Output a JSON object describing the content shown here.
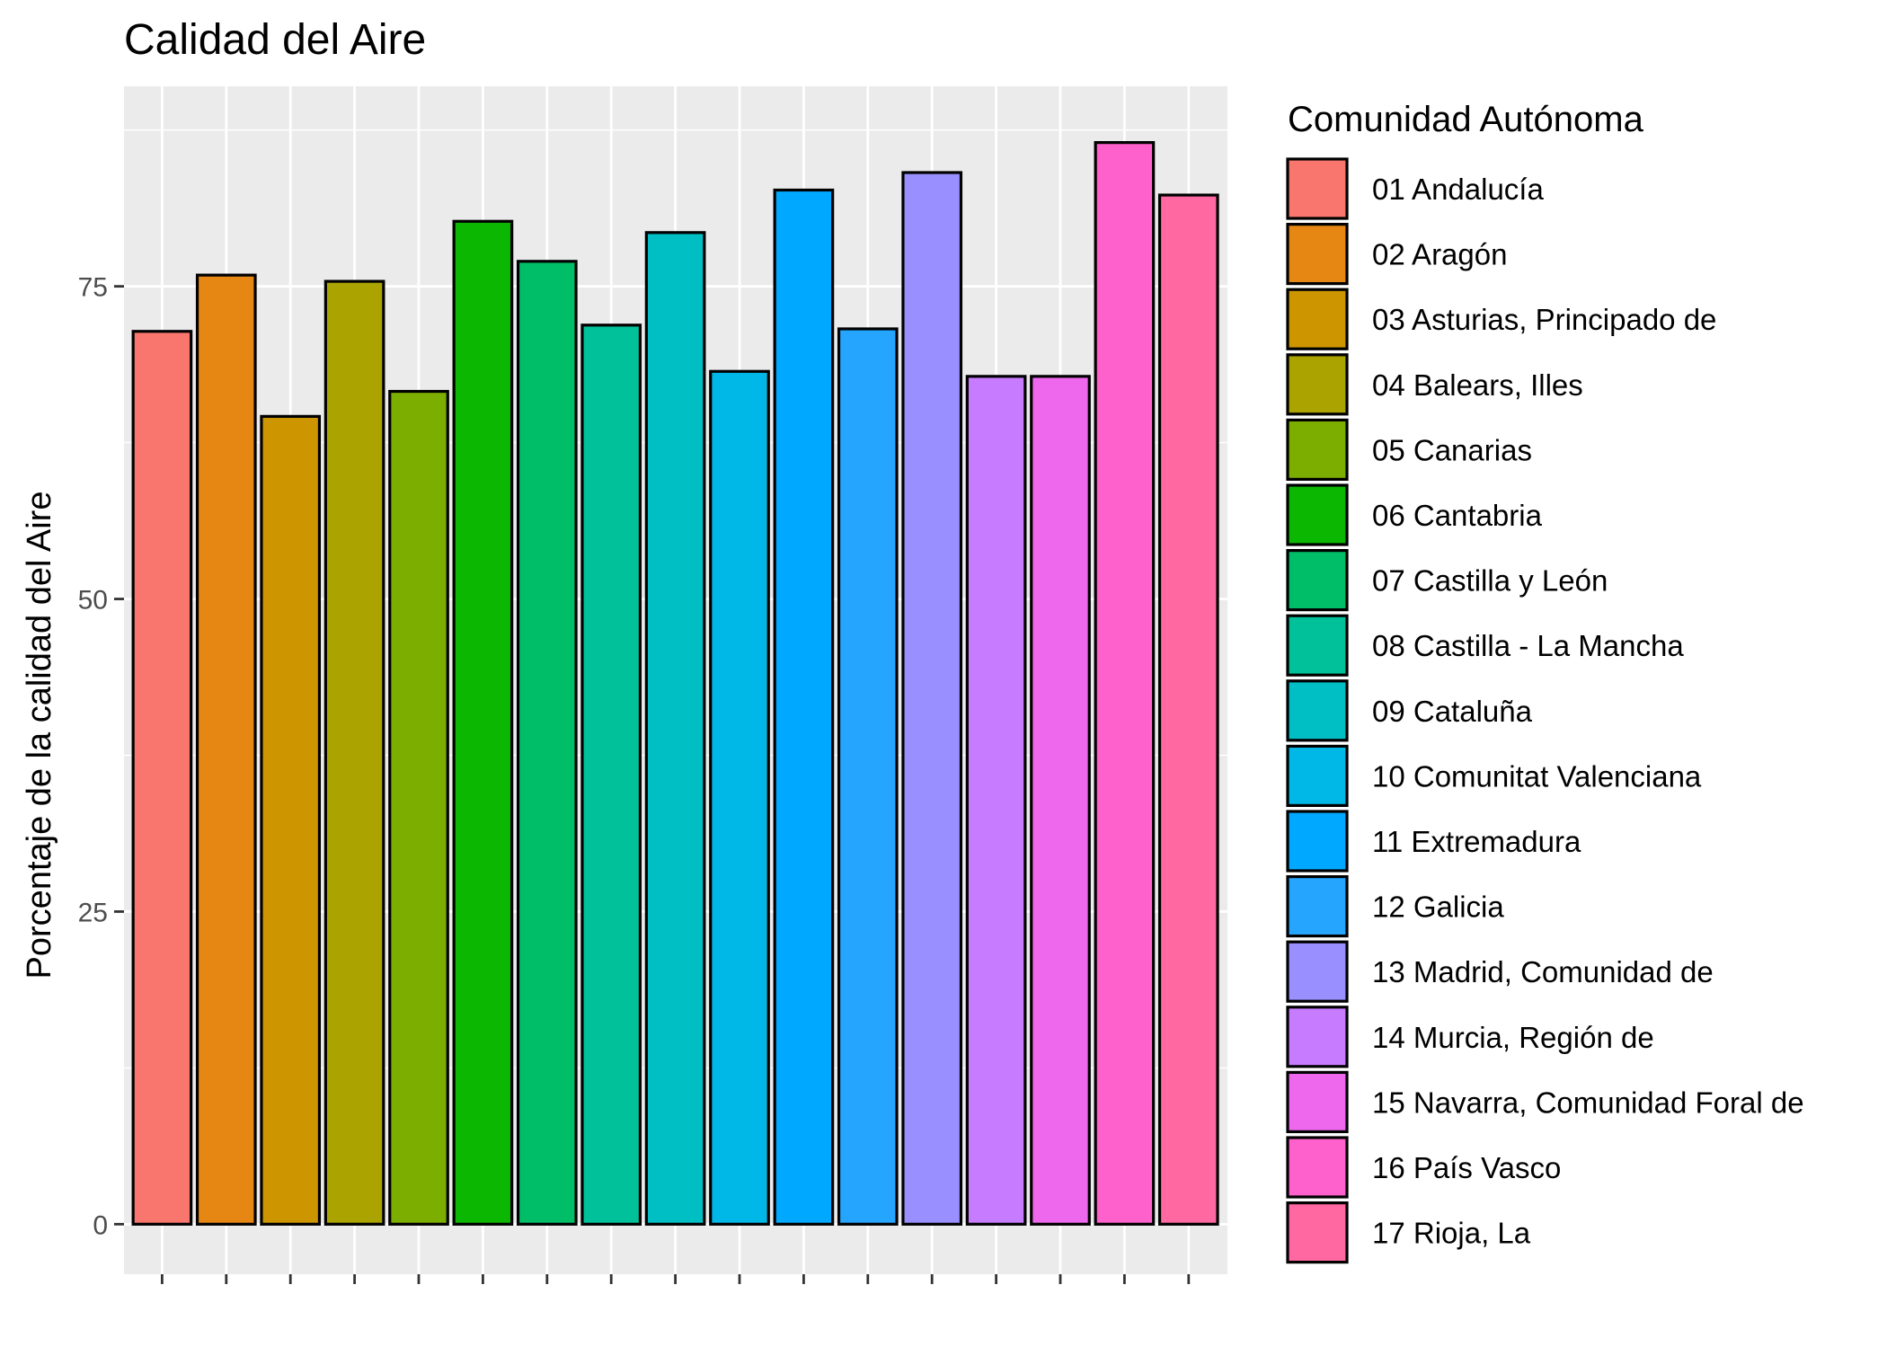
{
  "chart_data": {
    "type": "bar",
    "title": "Calidad del Aire",
    "xlabel": "",
    "ylabel": "Porcentaje de la calidad del Aire",
    "ylim": [
      -4,
      91
    ],
    "yticks": [
      0,
      25,
      50,
      75
    ],
    "grid": true,
    "legend_position": "right",
    "legend_title": "Comunidad Autónoma",
    "categories": [
      "01 Andalucía",
      "02 Aragón",
      "03 Asturias, Principado de",
      "04 Balears, Illes",
      "05 Canarias",
      "06 Cantabria",
      "07 Castilla y León",
      "08 Castilla - La Mancha",
      "09 Cataluña",
      "10 Comunitat Valenciana",
      "11 Extremadura",
      "12 Galicia",
      "13 Madrid, Comunidad de",
      "14 Murcia, Región de",
      "15 Navarra, Comunidad Foral de",
      "16 País Vasco",
      "17 Rioja, La"
    ],
    "values": [
      71.4,
      75.9,
      64.6,
      75.4,
      66.6,
      80.2,
      77.0,
      71.9,
      79.3,
      68.2,
      82.7,
      71.6,
      84.1,
      67.8,
      67.8,
      86.5,
      82.3
    ],
    "colors": [
      "#F8766D",
      "#E68613",
      "#CD9600",
      "#ABA300",
      "#7CAE00",
      "#0CB702",
      "#00BE67",
      "#00C19A",
      "#00BFC4",
      "#00B8E7",
      "#00A9FF",
      "#26A5FF",
      "#9A8FFF",
      "#C77CFF",
      "#ED68ED",
      "#FF61CC",
      "#FF68A1"
    ],
    "panel_background": "#EBEBEB",
    "grid_color": "#FFFFFF",
    "bar_outline": "#000000"
  }
}
